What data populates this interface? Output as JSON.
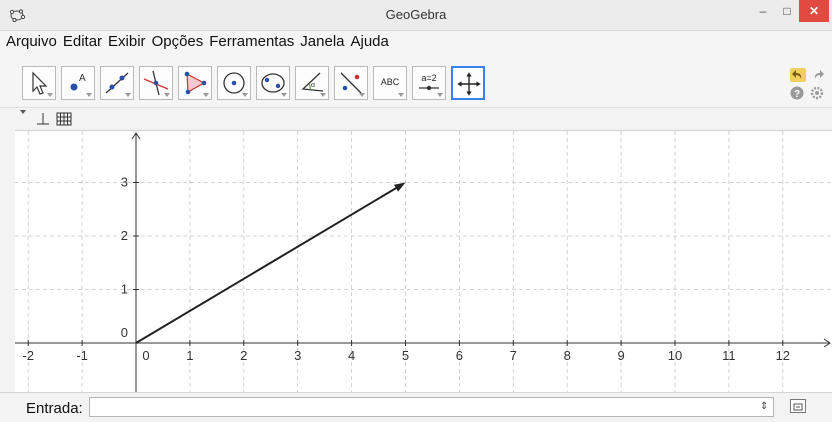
{
  "window": {
    "title": "GeoGebra",
    "app_icon": "geogebra-logo-icon",
    "minimize_icon": "minimize-icon",
    "maximize_icon": "maximize-icon",
    "close_icon": "close-icon"
  },
  "menu": {
    "items": [
      "Arquivo",
      "Editar",
      "Exibir",
      "Opções",
      "Ferramentas",
      "Janela",
      "Ajuda"
    ]
  },
  "toolbar": {
    "tools": [
      {
        "name": "move-tool",
        "icon": "cursor-arrow-icon"
      },
      {
        "name": "point-tool",
        "icon": "point-icon"
      },
      {
        "name": "line-tool",
        "icon": "line-through-points-icon"
      },
      {
        "name": "perpendicular-tool",
        "icon": "perpendicular-line-icon"
      },
      {
        "name": "polygon-tool",
        "icon": "polygon-icon"
      },
      {
        "name": "circle-tool",
        "icon": "circle-center-point-icon"
      },
      {
        "name": "conic-tool",
        "icon": "ellipse-icon"
      },
      {
        "name": "angle-tool",
        "icon": "angle-icon"
      },
      {
        "name": "reflect-tool",
        "icon": "reflect-about-line-icon"
      },
      {
        "name": "text-tool",
        "icon": "text-icon",
        "label": "ABC"
      },
      {
        "name": "slider-tool",
        "icon": "slider-icon",
        "label": "a=2"
      },
      {
        "name": "move-graphics-tool",
        "icon": "move-graphics-view-icon",
        "active": true
      }
    ],
    "undo_icon": "undo-icon",
    "redo_icon": "redo-icon",
    "help_icon": "help-icon",
    "settings_icon": "gear-icon"
  },
  "stylebar": {
    "axes_icon": "axes-toggle-icon",
    "grid_icon": "grid-toggle-icon"
  },
  "graphics": {
    "x_ticks": [
      "-2",
      "-1",
      "0",
      "1",
      "2",
      "3",
      "4",
      "5",
      "6",
      "7",
      "8",
      "9",
      "10",
      "11",
      "12"
    ],
    "y_ticks": [
      "1",
      "2",
      "3"
    ],
    "origin_label": "0",
    "vector": {
      "from": [
        0,
        0
      ],
      "to": [
        5,
        3
      ]
    },
    "colors": {
      "grid": "#c8c8c8",
      "axis": "#333333",
      "vector": "#222222"
    }
  },
  "input_bar": {
    "label": "Entrada:",
    "value": "",
    "keyboard_icon": "virtual-keyboard-icon"
  }
}
